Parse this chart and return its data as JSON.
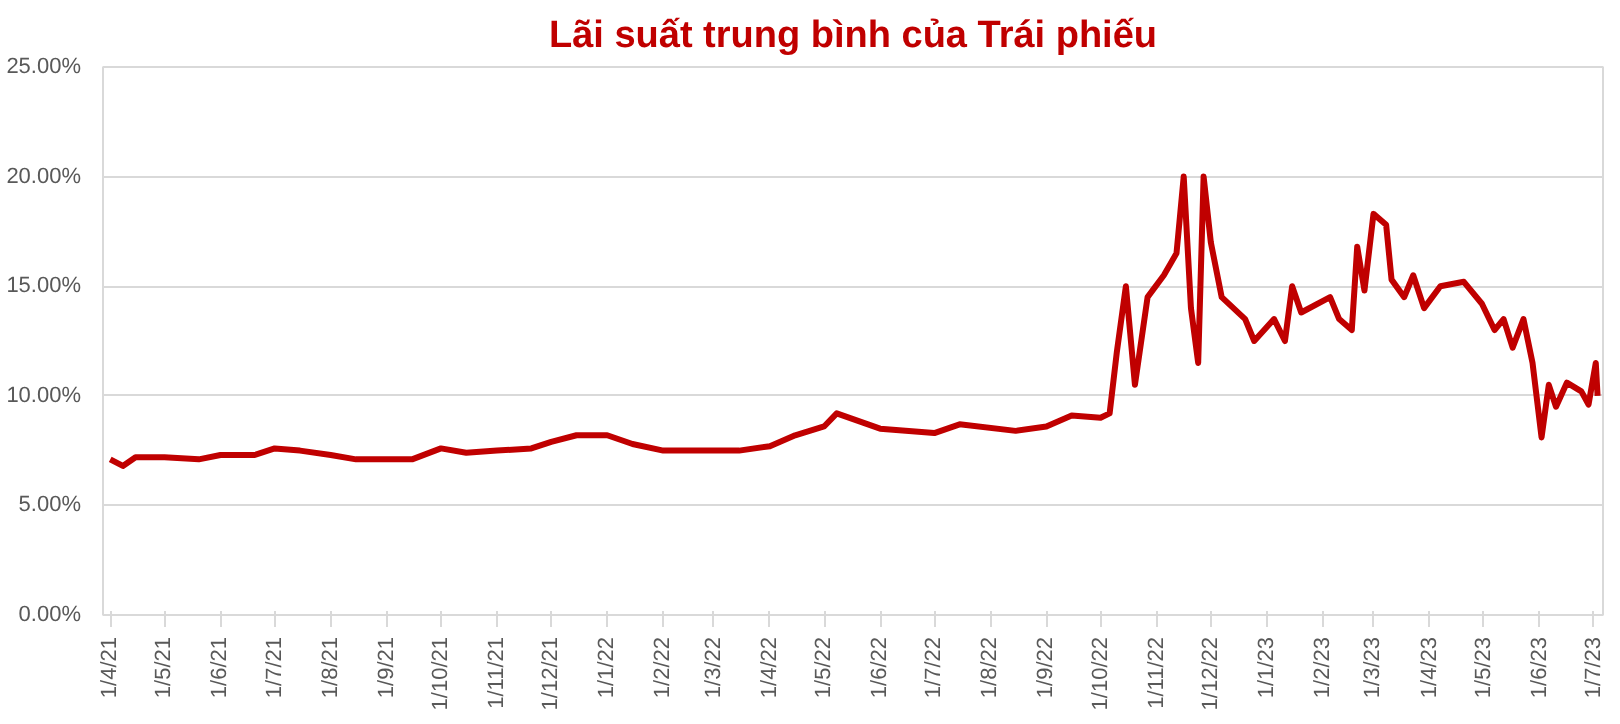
{
  "chart_data": {
    "type": "line",
    "title": "Lãi suất trung bình của Trái phiếu",
    "x": [
      "2021-04-01",
      "2021-04-08",
      "2021-04-15",
      "2021-05-01",
      "2021-05-20",
      "2021-06-01",
      "2021-06-20",
      "2021-07-01",
      "2021-07-15",
      "2021-08-01",
      "2021-08-15",
      "2021-09-01",
      "2021-09-15",
      "2021-10-01",
      "2021-10-15",
      "2021-11-01",
      "2021-11-20",
      "2021-12-01",
      "2021-12-15",
      "2022-01-01",
      "2022-01-15",
      "2022-02-01",
      "2022-02-15",
      "2022-03-01",
      "2022-03-15",
      "2022-04-01",
      "2022-04-15",
      "2022-05-01",
      "2022-05-08",
      "2022-06-01",
      "2022-07-01",
      "2022-07-15",
      "2022-08-15",
      "2022-09-01",
      "2022-09-15",
      "2022-10-01",
      "2022-10-06",
      "2022-10-10",
      "2022-10-15",
      "2022-10-20",
      "2022-10-27",
      "2022-11-05",
      "2022-11-12",
      "2022-11-16",
      "2022-11-20",
      "2022-11-24",
      "2022-11-27",
      "2022-12-01",
      "2022-12-07",
      "2022-12-20",
      "2022-12-25",
      "2023-01-05",
      "2023-01-11",
      "2023-01-15",
      "2023-01-20",
      "2023-02-05",
      "2023-02-10",
      "2023-02-17",
      "2023-02-20",
      "2023-02-24",
      "2023-03-01",
      "2023-03-08",
      "2023-03-11",
      "2023-03-18",
      "2023-03-23",
      "2023-03-29",
      "2023-04-07",
      "2023-04-20",
      "2023-04-30",
      "2023-05-07",
      "2023-05-12",
      "2023-05-17",
      "2023-05-23",
      "2023-05-28",
      "2023-06-02",
      "2023-06-06",
      "2023-06-10",
      "2023-06-16",
      "2023-06-24",
      "2023-06-28",
      "2023-07-02",
      "2023-07-03"
    ],
    "series": [
      {
        "color": "#c00000",
        "values": [
          7.1,
          6.8,
          7.2,
          7.2,
          7.1,
          7.3,
          7.3,
          7.6,
          7.5,
          7.3,
          7.1,
          7.1,
          7.1,
          7.6,
          7.4,
          7.5,
          7.6,
          7.9,
          8.2,
          8.2,
          7.8,
          7.5,
          7.5,
          7.5,
          7.5,
          7.7,
          8.2,
          8.6,
          9.2,
          8.5,
          8.3,
          8.7,
          8.4,
          8.6,
          9.1,
          9.0,
          9.2,
          12.0,
          15.0,
          10.5,
          14.5,
          15.5,
          16.5,
          20.0,
          14.0,
          11.5,
          20.0,
          17.0,
          14.5,
          13.5,
          12.5,
          13.5,
          12.5,
          15.0,
          13.8,
          14.5,
          13.5,
          13.0,
          16.8,
          14.8,
          18.3,
          17.8,
          15.3,
          14.5,
          15.5,
          14.0,
          15.0,
          15.2,
          14.2,
          13.0,
          13.5,
          12.2,
          13.5,
          11.5,
          8.1,
          10.5,
          9.5,
          10.6,
          10.2,
          9.6,
          11.5,
          10.0
        ]
      }
    ],
    "xlim": [
      "2021-03-28",
      "2023-07-06"
    ],
    "xticks": [
      {
        "value": "2021-04-01",
        "label": "1/4/21"
      },
      {
        "value": "2021-05-01",
        "label": "1/5/21"
      },
      {
        "value": "2021-06-01",
        "label": "1/6/21"
      },
      {
        "value": "2021-07-01",
        "label": "1/7/21"
      },
      {
        "value": "2021-08-01",
        "label": "1/8/21"
      },
      {
        "value": "2021-09-01",
        "label": "1/9/21"
      },
      {
        "value": "2021-10-01",
        "label": "1/10/21"
      },
      {
        "value": "2021-11-01",
        "label": "1/11/21"
      },
      {
        "value": "2021-12-01",
        "label": "1/12/21"
      },
      {
        "value": "2022-01-01",
        "label": "1/1/22"
      },
      {
        "value": "2022-02-01",
        "label": "1/2/22"
      },
      {
        "value": "2022-03-01",
        "label": "1/3/22"
      },
      {
        "value": "2022-04-01",
        "label": "1/4/22"
      },
      {
        "value": "2022-05-01",
        "label": "1/5/22"
      },
      {
        "value": "2022-06-01",
        "label": "1/6/22"
      },
      {
        "value": "2022-07-01",
        "label": "1/7/22"
      },
      {
        "value": "2022-08-01",
        "label": "1/8/22"
      },
      {
        "value": "2022-09-01",
        "label": "1/9/22"
      },
      {
        "value": "2022-10-01",
        "label": "1/10/22"
      },
      {
        "value": "2022-11-01",
        "label": "1/11/22"
      },
      {
        "value": "2022-12-01",
        "label": "1/12/22"
      },
      {
        "value": "2023-01-01",
        "label": "1/1/23"
      },
      {
        "value": "2023-02-01",
        "label": "1/2/23"
      },
      {
        "value": "2023-03-01",
        "label": "1/3/23"
      },
      {
        "value": "2023-04-01",
        "label": "1/4/23"
      },
      {
        "value": "2023-05-01",
        "label": "1/5/23"
      },
      {
        "value": "2023-06-01",
        "label": "1/6/23"
      },
      {
        "value": "2023-07-01",
        "label": "1/7/23"
      }
    ],
    "ylim": [
      0,
      25
    ],
    "yticks": [
      {
        "value": 0,
        "label": "0.00%"
      },
      {
        "value": 5,
        "label": "5.00%"
      },
      {
        "value": 10,
        "label": "10.00%"
      },
      {
        "value": 15,
        "label": "15.00%"
      },
      {
        "value": 20,
        "label": "20.00%"
      },
      {
        "value": 25,
        "label": "25.00%"
      }
    ],
    "grid": "y",
    "marker": "none",
    "line_style": "solid"
  }
}
